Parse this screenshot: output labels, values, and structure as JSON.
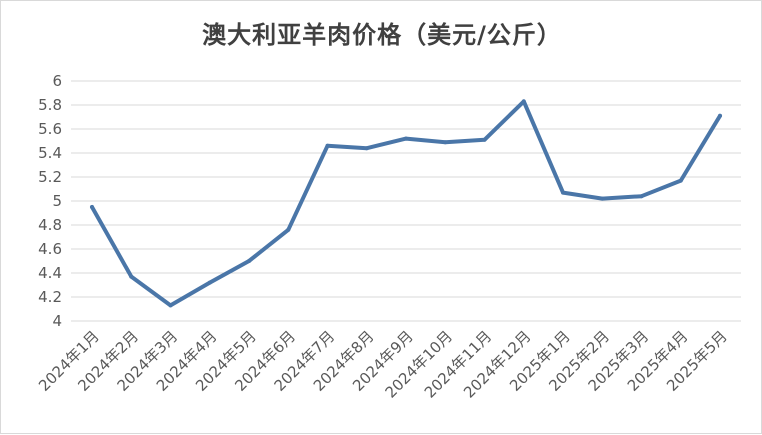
{
  "chart_data": {
    "type": "line",
    "title": "澳大利亚羊肉价格（美元/公斤）",
    "xlabel": "",
    "ylabel": "",
    "categories": [
      "2024年1月",
      "2024年2月",
      "2024年3月",
      "2024年4月",
      "2024年5月",
      "2024年6月",
      "2024年7月",
      "2024年8月",
      "2024年9月",
      "2024年10月",
      "2024年11月",
      "2024年12月",
      "2025年1月",
      "2025年2月",
      "2025年3月",
      "2025年4月",
      "2025年5月"
    ],
    "series": [
      {
        "values": [
          4.95,
          4.37,
          4.13,
          4.32,
          4.5,
          4.76,
          5.46,
          5.44,
          5.52,
          5.49,
          5.51,
          5.83,
          5.07,
          5.02,
          5.04,
          5.17,
          5.71
        ],
        "color": "#4a76a8"
      }
    ],
    "ylim": [
      4,
      6
    ],
    "yticks": [
      "4",
      "4.2",
      "4.4",
      "4.6",
      "4.8",
      "5",
      "5.2",
      "5.4",
      "5.6",
      "5.8",
      "6"
    ],
    "grid": true,
    "legend": "none",
    "gridColor": "#d9d9d9"
  }
}
